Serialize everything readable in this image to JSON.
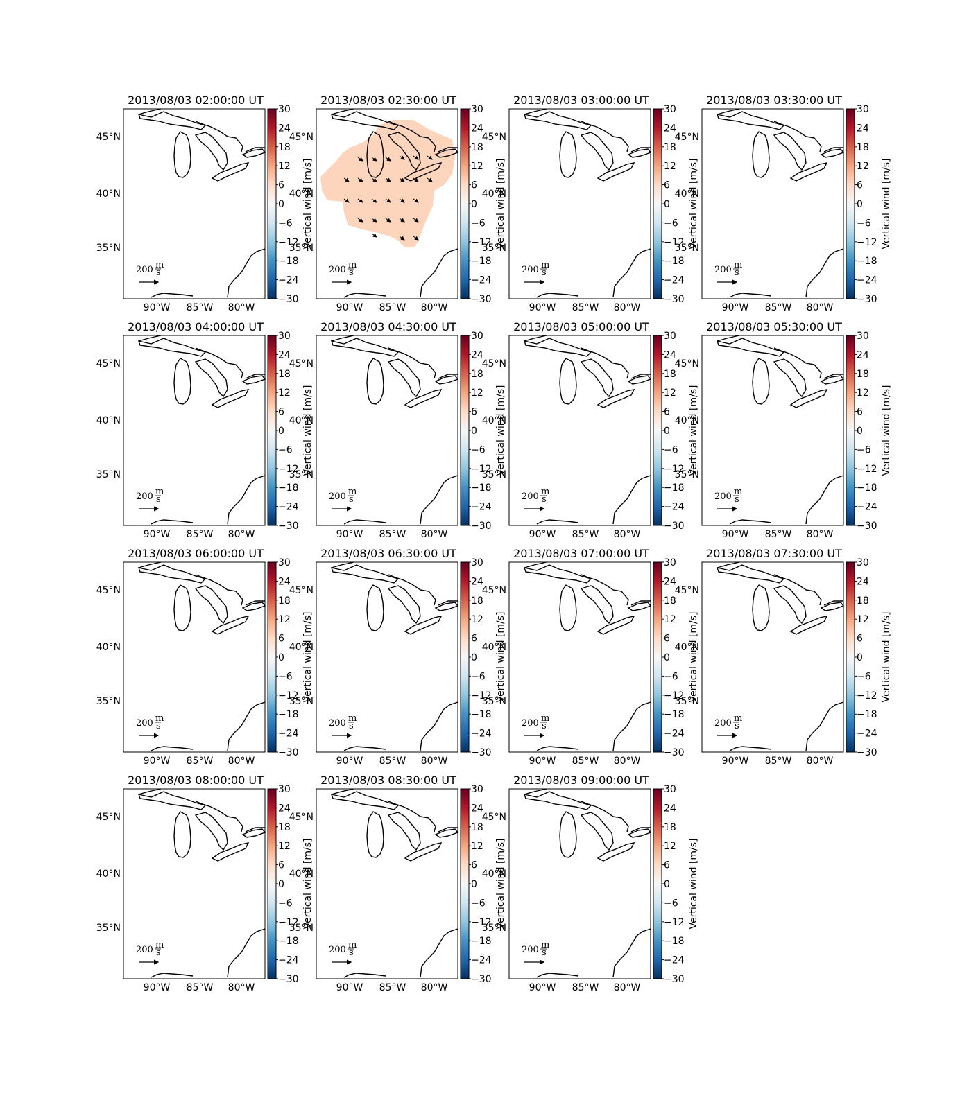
{
  "figure": {
    "lat_ticks": [
      "45°N",
      "40°N",
      "35°N"
    ],
    "lon_ticks": [
      "90°W",
      "85°W",
      "80°W"
    ],
    "colorbar": {
      "label": "Vertical wind [m/s]",
      "ticks": [
        "30",
        "24",
        "18",
        "12",
        "6",
        "0",
        "−6",
        "−12",
        "−18",
        "−24",
        "−30"
      ],
      "vmin": -30,
      "vmax": 30,
      "colormap": [
        "#053061",
        "#2166ac",
        "#4393c3",
        "#92c5de",
        "#d1e5f0",
        "#f7f7f7",
        "#fddbc7",
        "#f4a582",
        "#d6604d",
        "#b2182b",
        "#67001f"
      ]
    },
    "quiver_key": {
      "value": "200",
      "unit_numerator": "m",
      "unit_denominator": "s"
    },
    "field_color": "#fdd5bd",
    "panels": [
      {
        "title": "2013/08/03 02:00:00 UT",
        "has_field": false
      },
      {
        "title": "2013/08/03 02:30:00 UT",
        "has_field": true
      },
      {
        "title": "2013/08/03 03:00:00 UT",
        "has_field": false
      },
      {
        "title": "2013/08/03 03:30:00 UT",
        "has_field": false
      },
      {
        "title": "2013/08/03 04:00:00 UT",
        "has_field": false
      },
      {
        "title": "2013/08/03 04:30:00 UT",
        "has_field": false
      },
      {
        "title": "2013/08/03 05:00:00 UT",
        "has_field": false
      },
      {
        "title": "2013/08/03 05:30:00 UT",
        "has_field": false
      },
      {
        "title": "2013/08/03 06:00:00 UT",
        "has_field": false
      },
      {
        "title": "2013/08/03 06:30:00 UT",
        "has_field": false
      },
      {
        "title": "2013/08/03 07:00:00 UT",
        "has_field": false
      },
      {
        "title": "2013/08/03 07:30:00 UT",
        "has_field": false
      },
      {
        "title": "2013/08/03 08:00:00 UT",
        "has_field": false
      },
      {
        "title": "2013/08/03 08:30:00 UT",
        "has_field": false
      },
      {
        "title": "2013/08/03 09:00:00 UT",
        "has_field": false
      }
    ]
  }
}
